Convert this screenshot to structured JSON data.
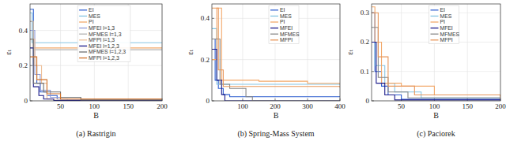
{
  "chart_data": [
    {
      "type": "line",
      "title": "(a) Rastrigin",
      "xlabel": "B",
      "ylabel": "εₜ",
      "line_style": "step",
      "grid": true,
      "legend": "upper center",
      "xlim": [
        5,
        200
      ],
      "xticks": [
        50,
        100,
        150,
        200
      ],
      "ylim": [
        0,
        0.55
      ],
      "yticks": [
        0,
        0.2,
        0.4
      ],
      "series": [
        {
          "name": "EI",
          "color": "#2f5fd0",
          "x": [
            5,
            10,
            15,
            20,
            30,
            45,
            60,
            200
          ],
          "values": [
            0.52,
            0.2,
            0.1,
            0.05,
            0.03,
            0.01,
            0.004,
            0.004
          ]
        },
        {
          "name": "MES",
          "color": "#86c5e3",
          "x": [
            5,
            8,
            200
          ],
          "values": [
            0.5,
            0.33,
            0.33
          ]
        },
        {
          "name": "PI",
          "color": "#f2a96b",
          "x": [
            5,
            10,
            200
          ],
          "values": [
            0.45,
            0.3,
            0.3
          ]
        },
        {
          "name": "MFEI l=1,3",
          "color": "#8f9ad6",
          "x": [
            5,
            12,
            20,
            35,
            50,
            200
          ],
          "values": [
            0.4,
            0.15,
            0.06,
            0.02,
            0.005,
            0.005
          ]
        },
        {
          "name": "MFMES l=1,3",
          "color": "#b3b3b3",
          "x": [
            5,
            10,
            200
          ],
          "values": [
            0.45,
            0.29,
            0.29
          ]
        },
        {
          "name": "MFPI l=1,3",
          "color": "#eec09a",
          "x": [
            5,
            12,
            22,
            30,
            200
          ],
          "values": [
            0.35,
            0.2,
            0.1,
            0.01,
            0.01
          ]
        },
        {
          "name": "MFEI l=1,2,3",
          "color": "#1b1b8a",
          "x": [
            5,
            10,
            18,
            25,
            40,
            200
          ],
          "values": [
            0.3,
            0.08,
            0.03,
            0.01,
            0.002,
            0.002
          ]
        },
        {
          "name": "MFMES l=1,2,3",
          "color": "#707070",
          "x": [
            5,
            10,
            25,
            50,
            80,
            200
          ],
          "values": [
            0.35,
            0.1,
            0.05,
            0.02,
            0.005,
            0.005
          ]
        },
        {
          "name": "MFPI l=1,2,3",
          "color": "#d2732a",
          "x": [
            5,
            15,
            30,
            50,
            200
          ],
          "values": [
            0.25,
            0.12,
            0.04,
            0.01,
            0.01
          ]
        }
      ]
    },
    {
      "type": "line",
      "title": "(b) Spring-Mass System",
      "xlabel": "B",
      "ylabel": "εₜ",
      "line_style": "step",
      "grid": true,
      "legend": "upper center",
      "xlim": [
        5,
        400
      ],
      "xticks": [
        100,
        200,
        300,
        400
      ],
      "ylim": [
        0,
        0.47
      ],
      "yticks": [
        0,
        0.2,
        0.4
      ],
      "series": [
        {
          "name": "EI",
          "color": "#2f5fd0",
          "x": [
            5,
            15,
            25,
            40,
            60,
            400
          ],
          "values": [
            0.3,
            0.1,
            0.06,
            0.03,
            0.02,
            0.02
          ]
        },
        {
          "name": "MES",
          "color": "#86c5e3",
          "x": [
            5,
            20,
            400
          ],
          "values": [
            0.35,
            0.08,
            0.075
          ]
        },
        {
          "name": "PI",
          "color": "#f2a96b",
          "x": [
            5,
            20,
            35,
            150,
            300,
            400
          ],
          "values": [
            0.2,
            0.45,
            0.1,
            0.095,
            0.085,
            0.08
          ]
        },
        {
          "name": "MFEI",
          "color": "#1b1b8a",
          "x": [
            5,
            20,
            35,
            45,
            400
          ],
          "values": [
            0.25,
            0.1,
            0.03,
            0,
            0
          ]
        },
        {
          "name": "MFMES",
          "color": "#888888",
          "x": [
            5,
            30,
            60,
            110,
            130,
            400
          ],
          "values": [
            0.3,
            0.08,
            0.06,
            0.02,
            0,
            0
          ]
        },
        {
          "name": "MFPI",
          "color": "#e8965a",
          "x": [
            5,
            25,
            40,
            400
          ],
          "values": [
            0.45,
            0.15,
            0.07,
            0.065
          ]
        }
      ]
    },
    {
      "type": "line",
      "title": "(c) Paciorek",
      "xlabel": "B",
      "ylabel": "εₜ",
      "line_style": "step",
      "grid": true,
      "legend": "upper center",
      "xlim": [
        5,
        200
      ],
      "xticks": [
        50,
        100,
        150,
        200
      ],
      "ylim": [
        0,
        0.33
      ],
      "yticks": [
        0,
        0.1,
        0.2,
        0.3
      ],
      "series": [
        {
          "name": "EI",
          "color": "#2f5fd0",
          "x": [
            5,
            10,
            20,
            30,
            50,
            200
          ],
          "values": [
            0.3,
            0.1,
            0.05,
            0.02,
            0.005,
            0.005
          ]
        },
        {
          "name": "MES",
          "color": "#86c5e3",
          "x": [
            5,
            10,
            25,
            40,
            80,
            200
          ],
          "values": [
            0.2,
            0.12,
            0.06,
            0.03,
            0.01,
            0.01
          ]
        },
        {
          "name": "PI",
          "color": "#f2a96b",
          "x": [
            5,
            10,
            20,
            50,
            100,
            200
          ],
          "values": [
            0.32,
            0.2,
            0.06,
            0.05,
            0.02,
            0.005
          ]
        },
        {
          "name": "MFEI",
          "color": "#1b1b8a",
          "x": [
            5,
            12,
            25,
            40,
            200
          ],
          "values": [
            0.2,
            0.06,
            0.02,
            0.003,
            0.003
          ]
        },
        {
          "name": "MFMES",
          "color": "#888888",
          "x": [
            5,
            15,
            30,
            60,
            200
          ],
          "values": [
            0.25,
            0.08,
            0.03,
            0.01,
            0.01
          ]
        },
        {
          "name": "MFPI",
          "color": "#e8965a",
          "x": [
            5,
            15,
            30,
            70,
            200
          ],
          "values": [
            0.3,
            0.15,
            0.05,
            0.02,
            0.015
          ]
        }
      ]
    }
  ]
}
